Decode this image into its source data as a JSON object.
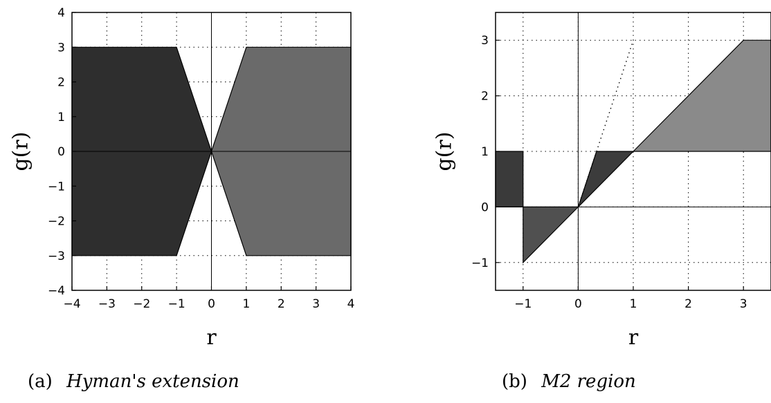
{
  "chart_data": [
    {
      "type": "area",
      "caption_prefix": "(a)",
      "caption_title": "Hyman's extension",
      "xlabel": "r",
      "ylabel": "g(r)",
      "xlim": [
        -4,
        4
      ],
      "ylim": [
        -4,
        4
      ],
      "xticks": [
        -4,
        -3,
        -2,
        -1,
        0,
        1,
        2,
        3,
        4
      ],
      "yticks": [
        -4,
        -3,
        -2,
        -1,
        0,
        1,
        2,
        3,
        4
      ],
      "grid": true,
      "fill_color": "#3a3a3a",
      "regions": [
        {
          "points": [
            [
              -4,
              3
            ],
            [
              -1,
              3
            ],
            [
              0,
              0
            ],
            [
              -1,
              -3
            ],
            [
              -4,
              -3
            ]
          ],
          "shade": "#2e2e2e"
        },
        {
          "points": [
            [
              0,
              0
            ],
            [
              1,
              3
            ],
            [
              4,
              3
            ],
            [
              4,
              -3
            ],
            [
              1,
              -3
            ]
          ],
          "shade": "#6a6a6a"
        }
      ]
    },
    {
      "type": "area",
      "caption_prefix": "(b)",
      "caption_title": "M2 region",
      "xlabel": "r",
      "ylabel": "g(r)",
      "xlim": [
        -1.5,
        3.5
      ],
      "ylim": [
        -1.5,
        3.5
      ],
      "xticks": [
        -1,
        0,
        1,
        2,
        3
      ],
      "yticks": [
        -1,
        0,
        1,
        2,
        3
      ],
      "grid": true,
      "regions": [
        {
          "points": [
            [
              -1.5,
              0
            ],
            [
              -1,
              0
            ],
            [
              -1,
              1
            ],
            [
              -1.5,
              1
            ]
          ],
          "shade": "#3a3a3a"
        },
        {
          "points": [
            [
              -1,
              0
            ],
            [
              0,
              0
            ],
            [
              -1,
              -1
            ]
          ],
          "shade": "#505050"
        },
        {
          "points": [
            [
              0,
              0
            ],
            [
              0.333,
              1
            ],
            [
              1,
              1
            ]
          ],
          "shade": "#3c3c3c"
        },
        {
          "points": [
            [
              1,
              1
            ],
            [
              3,
              3
            ],
            [
              3.5,
              3
            ],
            [
              3.5,
              1
            ]
          ],
          "shade": "#8a8a8a"
        }
      ],
      "dotted_lines": [
        {
          "points": [
            [
              0,
              0
            ],
            [
              1,
              3
            ]
          ]
        }
      ]
    }
  ]
}
